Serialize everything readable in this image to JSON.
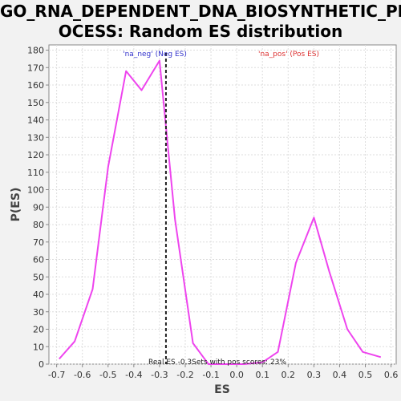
{
  "title_lines": [
    "GO_RNA_DEPENDENT_DNA_BIOSYNTHETIC_PR",
    "OCESS: Random ES distribution"
  ],
  "colors": {
    "series": "#ee44ee",
    "neg_label": "#3333cc",
    "pos_label": "#dd3333",
    "background": "#ffffff",
    "grid": "#dddddd"
  },
  "chart_data": {
    "type": "line",
    "title": "GO_RNA_DEPENDENT_DNA_BIOSYNTHETIC_PROCESS: Random ES distribution",
    "xlabel": "ES",
    "ylabel": "P(ES)",
    "xlim": [
      -0.73,
      0.62
    ],
    "ylim": [
      0,
      183
    ],
    "x_ticks": [
      -0.7,
      -0.6,
      -0.5,
      -0.4,
      -0.3,
      -0.2,
      -0.1,
      0.0,
      0.1,
      0.2,
      0.3,
      0.4,
      0.5,
      0.6
    ],
    "x_tick_labels": [
      "-0.7",
      "-0.6",
      "-0.5",
      "-0.4",
      "-0.3",
      "-0.2",
      "-0.1",
      "0.0",
      "0.1",
      "0.2",
      "0.3",
      "0.4",
      "0.5",
      "0.6"
    ],
    "y_ticks": [
      0,
      10,
      20,
      30,
      40,
      50,
      60,
      70,
      80,
      90,
      100,
      110,
      120,
      130,
      140,
      150,
      160,
      170,
      180
    ],
    "y_tick_labels": [
      "0",
      "10",
      "20",
      "30",
      "40",
      "50",
      "60",
      "70",
      "80",
      "90",
      "100",
      "110",
      "120",
      "130",
      "140",
      "150",
      "160",
      "170",
      "180"
    ],
    "grid": true,
    "series": [
      {
        "x": [
          -0.69,
          -0.63,
          -0.56,
          -0.5,
          -0.43,
          -0.37,
          -0.3,
          -0.24,
          -0.17,
          -0.11,
          -0.04,
          0.03,
          0.1,
          0.16,
          0.23,
          0.3,
          0.36,
          0.43,
          0.49,
          0.56
        ],
        "y": [
          3,
          13,
          43,
          113,
          168,
          157,
          174,
          83,
          12,
          0,
          0,
          0,
          1,
          7,
          58,
          84,
          53,
          20,
          7,
          4
        ]
      }
    ],
    "vline": {
      "x": -0.275,
      "style": "dashed"
    },
    "labels": {
      "neg": "'na_neg' (Neg ES)",
      "pos": "'na_pos' (Pos ES)"
    },
    "annotation": "Real ES -0.3Sets with pos scores: 23%"
  }
}
